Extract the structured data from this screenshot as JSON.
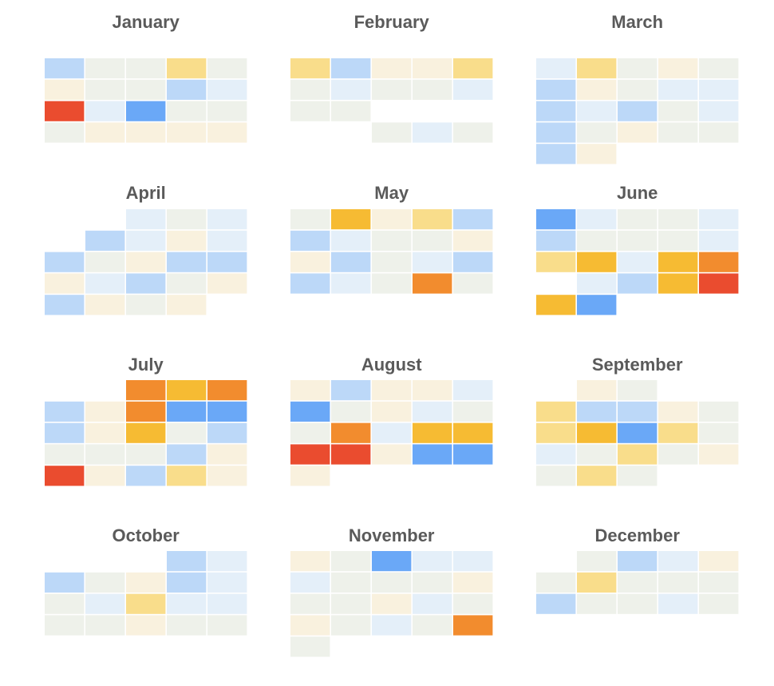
{
  "chart_data": {
    "type": "heatmap",
    "color_scale": {
      "1": "#6aa8f7",
      "2": "#bcd8f8",
      "3": "#e4eff9",
      "4": "#eef1ea",
      "5": "#f9f1de",
      "6": "#f9dd8b",
      "7": "#f6bb33",
      "8": "#f28c2e",
      "9": "#ea4c2f"
    },
    "months": [
      {
        "name": "January",
        "rows": [
          [
            2,
            4,
            4,
            6,
            4
          ],
          [
            5,
            4,
            4,
            2,
            3
          ],
          [
            9,
            3,
            1,
            4,
            4
          ],
          [
            4,
            5,
            5,
            5,
            5
          ]
        ]
      },
      {
        "name": "February",
        "rows": [
          [
            6,
            2,
            5,
            5,
            6
          ],
          [
            4,
            3,
            4,
            4,
            3
          ],
          [
            4,
            4,
            null,
            null,
            null
          ],
          [
            null,
            null,
            4,
            3,
            4
          ]
        ]
      },
      {
        "name": "March",
        "rows": [
          [
            3,
            6,
            4,
            5,
            4
          ],
          [
            2,
            5,
            4,
            3,
            3
          ],
          [
            2,
            3,
            2,
            4,
            3
          ],
          [
            2,
            4,
            5,
            4,
            4
          ],
          [
            2,
            5,
            null,
            null,
            null
          ]
        ]
      },
      {
        "name": "April",
        "rows": [
          [
            null,
            null,
            3,
            4,
            3
          ],
          [
            null,
            2,
            3,
            5,
            3
          ],
          [
            2,
            4,
            5,
            2,
            2
          ],
          [
            5,
            3,
            2,
            4,
            5
          ],
          [
            2,
            5,
            4,
            5,
            null
          ]
        ]
      },
      {
        "name": "May",
        "rows": [
          [
            4,
            7,
            5,
            6,
            2
          ],
          [
            2,
            3,
            4,
            4,
            5
          ],
          [
            5,
            2,
            4,
            3,
            2
          ],
          [
            2,
            3,
            4,
            8,
            4
          ]
        ]
      },
      {
        "name": "June",
        "rows": [
          [
            1,
            3,
            4,
            4,
            3
          ],
          [
            2,
            4,
            4,
            4,
            3
          ],
          [
            6,
            7,
            3,
            7,
            8
          ],
          [
            null,
            3,
            2,
            7,
            9
          ],
          [
            7,
            1,
            null,
            null,
            null
          ]
        ]
      },
      {
        "name": "July",
        "rows": [
          [
            null,
            null,
            8,
            7,
            8
          ],
          [
            2,
            5,
            8,
            1,
            1
          ],
          [
            2,
            5,
            7,
            4,
            2
          ],
          [
            4,
            4,
            4,
            2,
            5
          ],
          [
            9,
            5,
            2,
            6,
            5
          ]
        ]
      },
      {
        "name": "August",
        "rows": [
          [
            5,
            2,
            5,
            5,
            3
          ],
          [
            1,
            4,
            5,
            3,
            4
          ],
          [
            4,
            8,
            3,
            7,
            7
          ],
          [
            9,
            9,
            5,
            1,
            1
          ],
          [
            5,
            null,
            null,
            null,
            null
          ]
        ]
      },
      {
        "name": "September",
        "rows": [
          [
            null,
            5,
            4,
            null,
            null
          ],
          [
            6,
            2,
            2,
            5,
            4
          ],
          [
            6,
            7,
            1,
            6,
            4
          ],
          [
            3,
            4,
            6,
            4,
            5
          ],
          [
            4,
            6,
            4,
            null,
            null
          ]
        ]
      },
      {
        "name": "October",
        "rows": [
          [
            null,
            null,
            null,
            2,
            3
          ],
          [
            2,
            4,
            5,
            2,
            3
          ],
          [
            4,
            3,
            6,
            3,
            3
          ],
          [
            4,
            4,
            5,
            4,
            4
          ]
        ]
      },
      {
        "name": "November",
        "rows": [
          [
            5,
            4,
            1,
            3,
            3
          ],
          [
            3,
            4,
            4,
            4,
            5
          ],
          [
            4,
            4,
            5,
            3,
            4
          ],
          [
            5,
            4,
            3,
            4,
            8
          ],
          [
            4,
            null,
            null,
            null,
            null
          ]
        ]
      },
      {
        "name": "December",
        "rows": [
          [
            null,
            4,
            2,
            3,
            5
          ],
          [
            4,
            6,
            4,
            4,
            4
          ],
          [
            2,
            4,
            4,
            3,
            4
          ]
        ]
      }
    ]
  }
}
